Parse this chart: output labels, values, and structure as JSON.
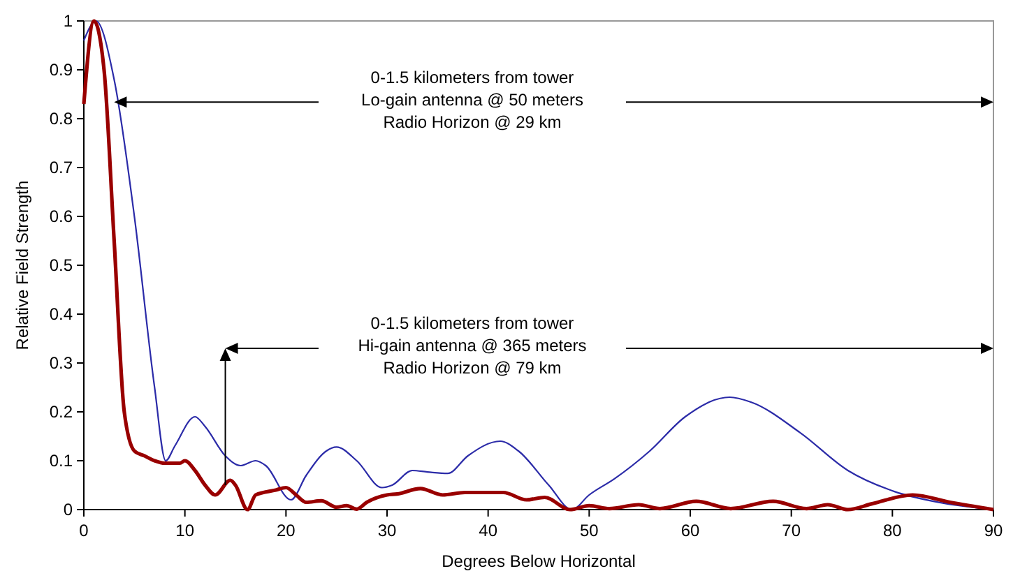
{
  "chart_data": {
    "type": "line",
    "xlabel": "Degrees Below Horizontal",
    "ylabel": "Relative Field Strength",
    "xlim": [
      0,
      90
    ],
    "ylim": [
      0,
      1
    ],
    "xticks": [
      0,
      10,
      20,
      30,
      40,
      50,
      60,
      70,
      80,
      90
    ],
    "yticks": [
      0,
      0.1,
      0.2,
      0.3,
      0.4,
      0.5,
      0.6,
      0.7,
      0.8,
      0.9,
      1
    ],
    "grid": false,
    "marker": "none",
    "annotations": [
      "0-1.5 kilometers from tower\nLo-gain antenna @ 50 meters\nRadio Horizon @ 29 km",
      "0-1.5 kilometers from tower\nHi-gain antenna @ 365 meters\nRadio Horizon @ 79 km"
    ],
    "series": [
      {
        "color": "#2b2ba8",
        "line_style": "solid",
        "x": [
          0,
          1.2,
          3,
          5,
          7,
          8.1,
          9,
          11,
          12,
          14,
          15.5,
          17,
          18,
          20.5,
          22,
          24,
          25,
          27,
          29.5,
          30.5,
          32.5,
          34,
          36,
          38,
          41.2,
          43,
          46,
          48.3,
          50,
          52.5,
          56,
          59.5,
          63.9,
          66,
          70.9,
          75.6,
          80.2,
          84.8,
          90
        ],
        "values": [
          0.96,
          1.0,
          0.88,
          0.6,
          0.25,
          0.1,
          0.13,
          0.19,
          0.17,
          0.11,
          0.09,
          0.1,
          0.09,
          0.02,
          0.07,
          0.12,
          0.128,
          0.1,
          0.045,
          0.05,
          0.08,
          0.077,
          0.074,
          0.11,
          0.14,
          0.12,
          0.05,
          0,
          0.03,
          0.063,
          0.12,
          0.19,
          0.23,
          0.22,
          0.157,
          0.08,
          0.037,
          0.014,
          0
        ]
      },
      {
        "color": "#990000",
        "line_style": "solid",
        "x": [
          0,
          1,
          2,
          3,
          4,
          5,
          6,
          7,
          8,
          9.5,
          10,
          11,
          12,
          13,
          14.5,
          15,
          16.2,
          17,
          19,
          20,
          21,
          22,
          23.5,
          25,
          26,
          27,
          28,
          30,
          31,
          33.3,
          35.5,
          37.7,
          41.5,
          43.8,
          45.6,
          48.1,
          50,
          52,
          54.9,
          57,
          60.6,
          64,
          68.2,
          71.5,
          73.6,
          75.6,
          78,
          82,
          85.7,
          90
        ],
        "values": [
          0.83,
          1.0,
          0.9,
          0.55,
          0.2,
          0.12,
          0.11,
          0.1,
          0.095,
          0.095,
          0.1,
          0.08,
          0.05,
          0.03,
          0.06,
          0.05,
          0,
          0.03,
          0.04,
          0.045,
          0.03,
          0.015,
          0.018,
          0.005,
          0.008,
          0.001,
          0.015,
          0.03,
          0.032,
          0.043,
          0.03,
          0.035,
          0.035,
          0.02,
          0.025,
          0,
          0.008,
          0.002,
          0.01,
          0.002,
          0.017,
          0.002,
          0.017,
          0.002,
          0.01,
          0,
          0.012,
          0.03,
          0.015,
          0
        ]
      }
    ]
  }
}
